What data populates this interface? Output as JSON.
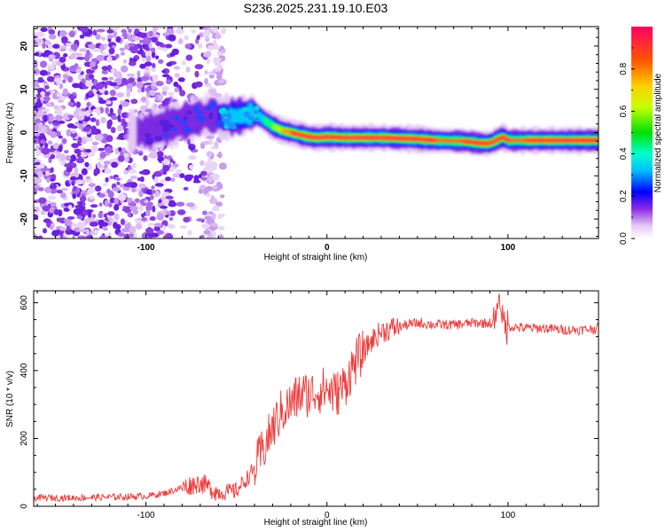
{
  "title": "S236.2025.231.19.10.E03",
  "chart_data": [
    {
      "type": "heatmap",
      "xlabel": "Height of straight line (km)",
      "ylabel": "Frequency (Hz)",
      "xlim": [
        -162,
        150
      ],
      "ylim": [
        -24.5,
        24.5
      ],
      "xticks": [
        -100,
        0,
        100
      ],
      "yticks": [
        -20,
        -10,
        0,
        10,
        20
      ],
      "ridge": {
        "description_points_x": [
          -100,
          -80,
          -65,
          -55,
          -45,
          -40,
          -35,
          -30,
          -25,
          -20,
          -15,
          -10,
          -5,
          0,
          10,
          30,
          50,
          60,
          75,
          80,
          85,
          90,
          95,
          97,
          100,
          120,
          150
        ],
        "frequency_hz": [
          0.2,
          2.5,
          4.0,
          3.5,
          4.0,
          4.5,
          3.0,
          1.5,
          0.5,
          0.0,
          -0.5,
          -1.0,
          -1.2,
          -1.0,
          -1.2,
          -1.2,
          -1.5,
          -1.8,
          -2.0,
          -2.2,
          -2.5,
          -2.5,
          -1.5,
          -1.0,
          -1.8,
          -1.8,
          -1.8
        ]
      },
      "colorbar": {
        "label": "Normalized spectral amplitude",
        "range": [
          0,
          1
        ],
        "ticks": [
          "0.0",
          "0.2",
          "0.4",
          "0.6",
          "0.8"
        ]
      }
    },
    {
      "type": "line",
      "xlabel": "Height of straight line (km)",
      "ylabel": "SNR (10 * v/v)",
      "xlim": [
        -162,
        150
      ],
      "ylim": [
        0,
        635
      ],
      "xticks": [
        -100,
        0,
        100
      ],
      "yticks": [
        0,
        200,
        400,
        600
      ],
      "color": "#ef3a3a",
      "series": [
        {
          "name": "SNR",
          "x": [
            -162,
            -140,
            -120,
            -100,
            -90,
            -80,
            -70,
            -60,
            -50,
            -40,
            -35,
            -30,
            -25,
            -20,
            -15,
            -10,
            -5,
            0,
            5,
            10,
            15,
            20,
            25,
            30,
            40,
            50,
            60,
            70,
            80,
            90,
            95,
            100,
            110,
            120,
            130,
            140,
            150
          ],
          "y": [
            25,
            25,
            27,
            30,
            38,
            55,
            70,
            40,
            45,
            110,
            170,
            230,
            280,
            300,
            330,
            330,
            340,
            345,
            330,
            360,
            420,
            455,
            490,
            515,
            530,
            540,
            535,
            535,
            540,
            540,
            540,
            530,
            525,
            525,
            520,
            520,
            525
          ]
        }
      ]
    }
  ]
}
